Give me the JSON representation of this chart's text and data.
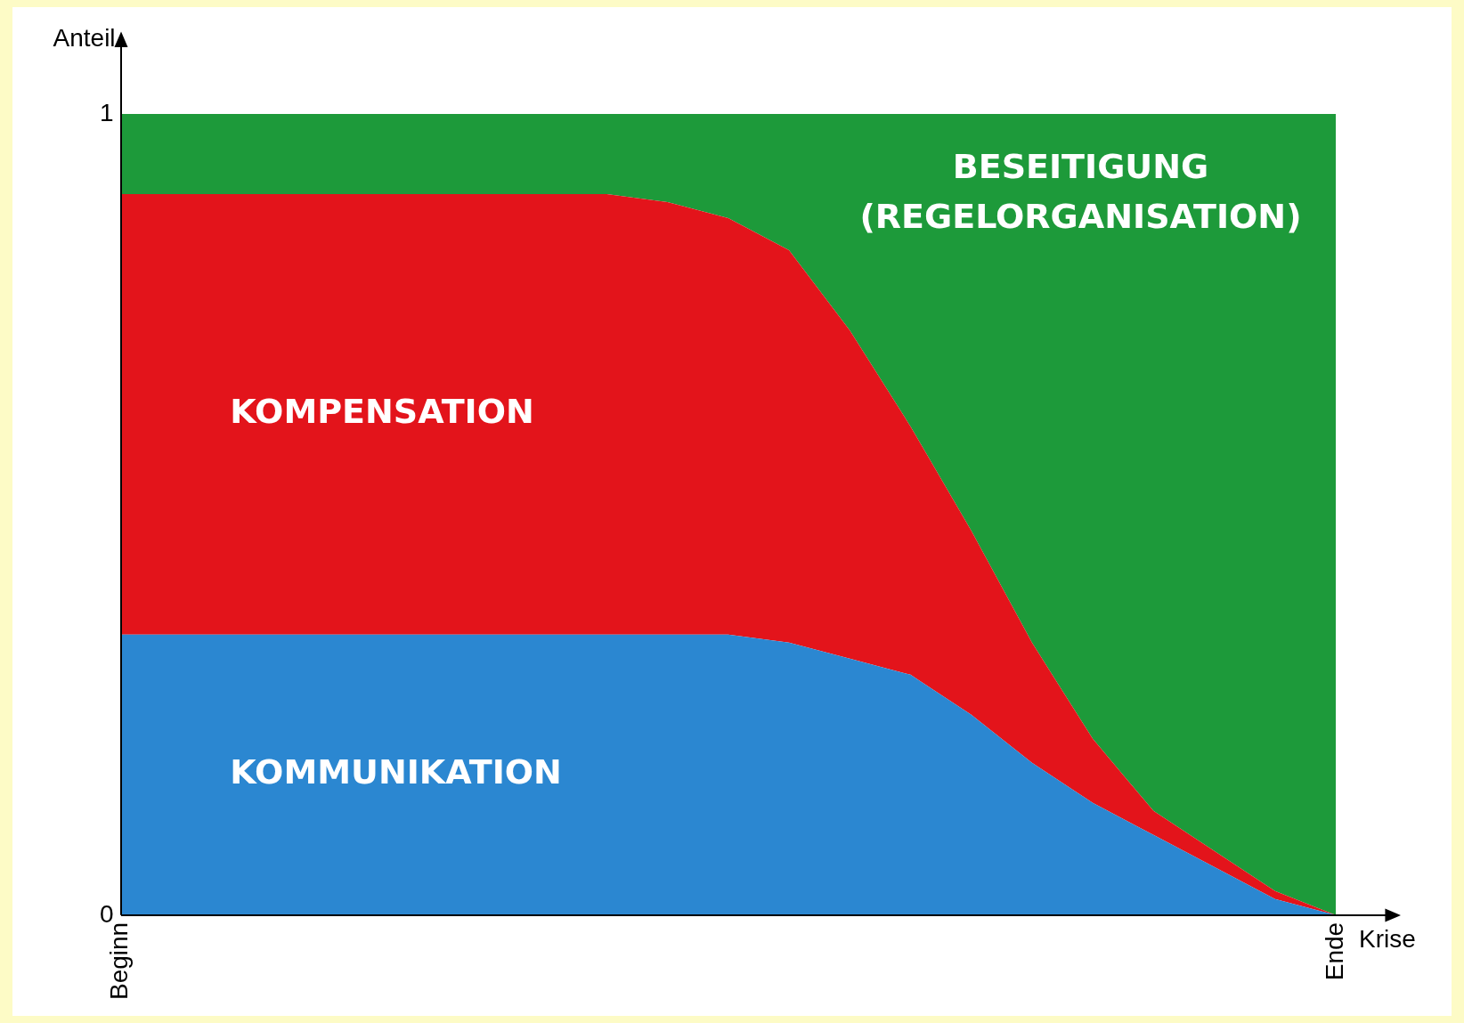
{
  "chart_data": {
    "type": "area",
    "stacked": true,
    "xlabel": "Krise",
    "ylabel": "Anteil",
    "categories": [
      "Beginn",
      null,
      null,
      null,
      null,
      null,
      null,
      null,
      null,
      null,
      null,
      null,
      null,
      null,
      null,
      null,
      null,
      null,
      null,
      null,
      "Ende"
    ],
    "ylim": [
      0,
      1.1
    ],
    "yticks": [
      0,
      1
    ],
    "grid": false,
    "legend": false,
    "series": [
      {
        "name": "KOMMUNIKATION",
        "color": "#2b87d1",
        "values": [
          0.35,
          0.35,
          0.35,
          0.35,
          0.35,
          0.35,
          0.35,
          0.35,
          0.35,
          0.35,
          0.35,
          0.34,
          0.32,
          0.3,
          0.25,
          0.19,
          0.14,
          0.1,
          0.06,
          0.02,
          0
        ]
      },
      {
        "name": "KOMPENSATION",
        "color": "#e3141b",
        "values": [
          0.55,
          0.55,
          0.55,
          0.55,
          0.55,
          0.55,
          0.55,
          0.55,
          0.55,
          0.54,
          0.52,
          0.49,
          0.41,
          0.31,
          0.23,
          0.15,
          0.08,
          0.03,
          0.02,
          0.01,
          0
        ]
      },
      {
        "name": "BESEITIGUNG\n(REGELORGANISATION)",
        "color": "#1d9a3a",
        "values": [
          0.1,
          0.1,
          0.1,
          0.1,
          0.1,
          0.1,
          0.1,
          0.1,
          0.1,
          0.11,
          0.13,
          0.17,
          0.27,
          0.39,
          0.52,
          0.66,
          0.78,
          0.87,
          0.92,
          0.97,
          1
        ]
      }
    ]
  }
}
